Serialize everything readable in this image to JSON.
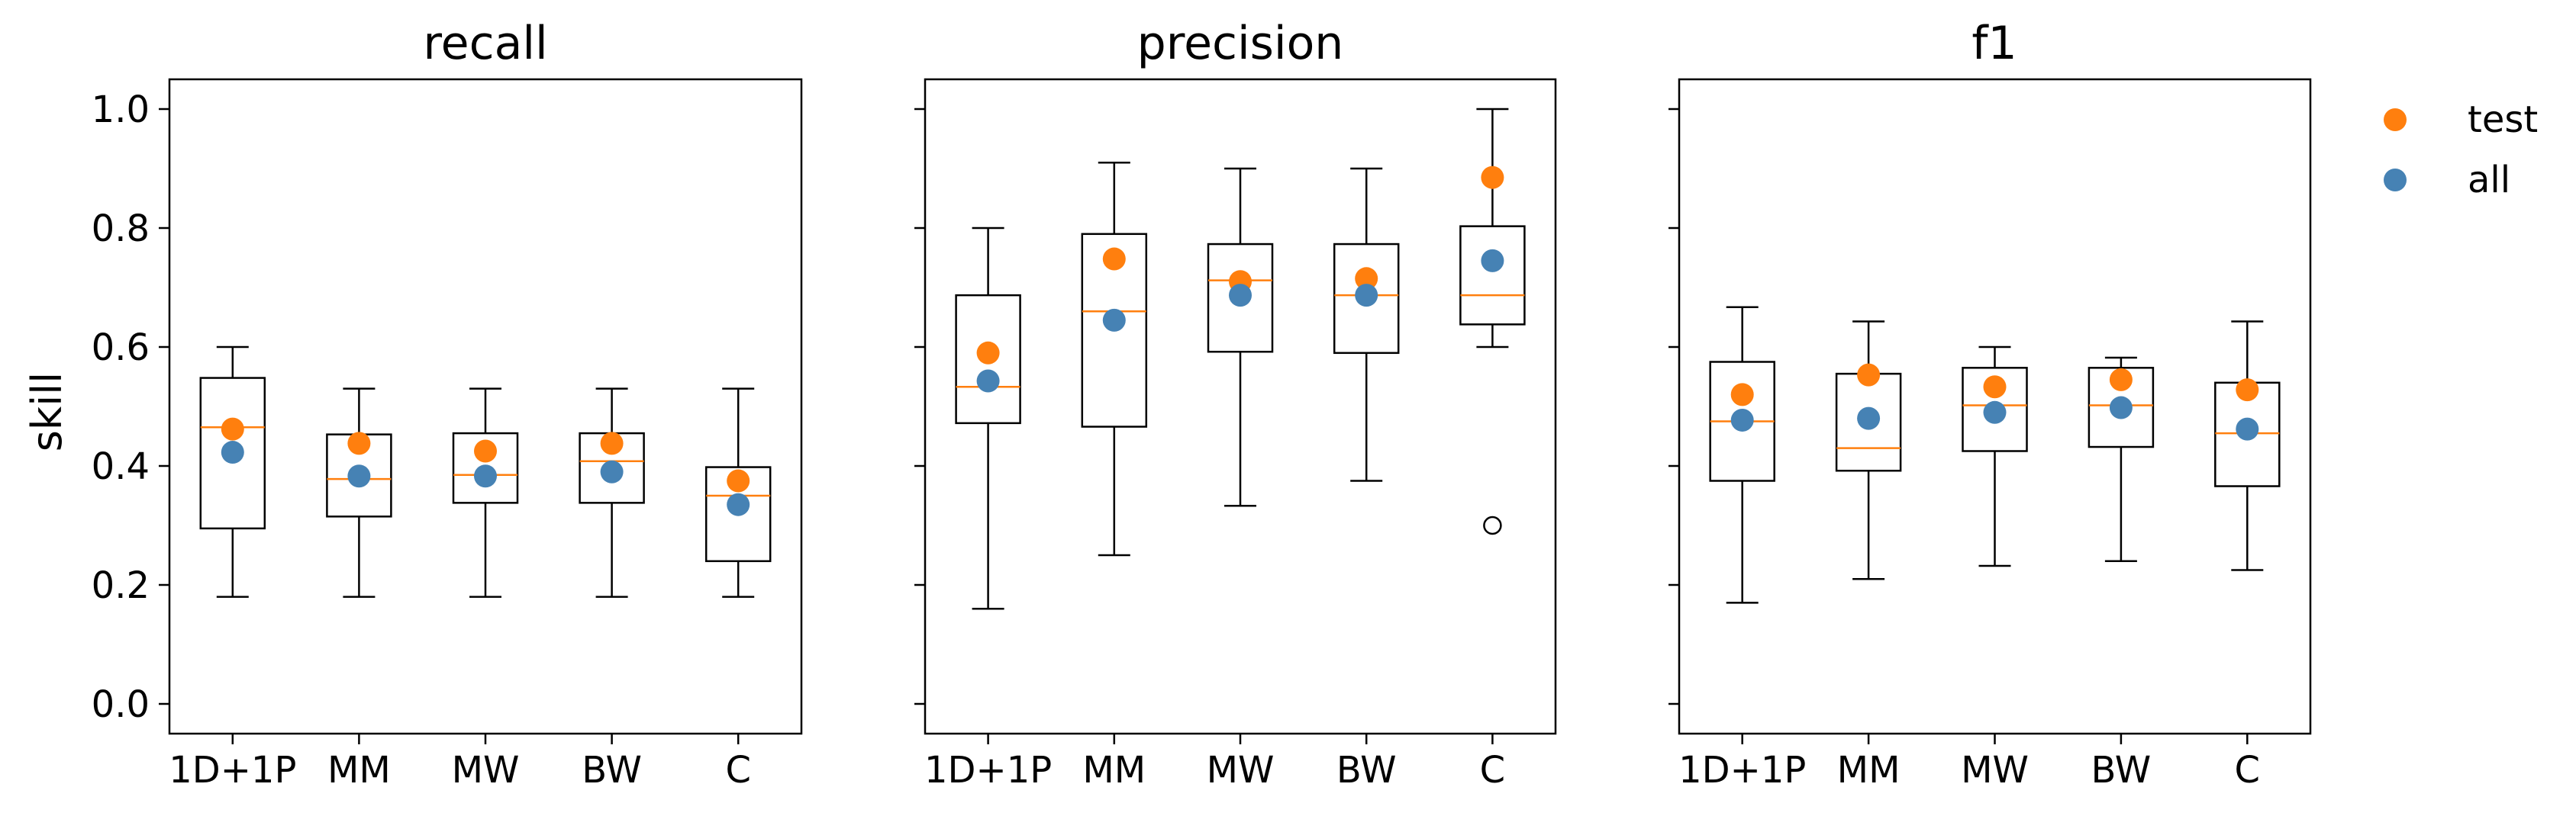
{
  "figure": {
    "ylabel": "skill",
    "colors": {
      "test": "#ff7f0e",
      "all": "#4682b4",
      "median": "#ff7f0e",
      "box": "#000000"
    },
    "legend": {
      "placement": "right",
      "entries": [
        {
          "label": "test",
          "series": "test"
        },
        {
          "label": "all",
          "series": "all"
        }
      ]
    }
  },
  "chart_data": [
    {
      "type": "box",
      "title": "recall",
      "ylim": [
        -0.05,
        1.05
      ],
      "yticks": [
        "0.0",
        "0.2",
        "0.4",
        "0.6",
        "0.8",
        "1.0"
      ],
      "categories": [
        "1D+1P",
        "MM",
        "MW",
        "BW",
        "C"
      ],
      "boxes": [
        {
          "whislo": 0.18,
          "q1": 0.295,
          "med": 0.465,
          "q3": 0.548,
          "whishi": 0.6,
          "fliers": []
        },
        {
          "whislo": 0.18,
          "q1": 0.315,
          "med": 0.378,
          "q3": 0.453,
          "whishi": 0.53,
          "fliers": []
        },
        {
          "whislo": 0.18,
          "q1": 0.338,
          "med": 0.385,
          "q3": 0.455,
          "whishi": 0.53,
          "fliers": []
        },
        {
          "whislo": 0.18,
          "q1": 0.338,
          "med": 0.408,
          "q3": 0.455,
          "whishi": 0.53,
          "fliers": []
        },
        {
          "whislo": 0.18,
          "q1": 0.24,
          "med": 0.35,
          "q3": 0.398,
          "whishi": 0.53,
          "fliers": []
        }
      ],
      "series": [
        {
          "name": "test",
          "values": [
            0.462,
            0.438,
            0.425,
            0.438,
            0.375
          ]
        },
        {
          "name": "all",
          "values": [
            0.423,
            0.383,
            0.383,
            0.39,
            0.335
          ]
        }
      ]
    },
    {
      "type": "box",
      "title": "precision",
      "ylim": [
        -0.05,
        1.05
      ],
      "yticks": [],
      "categories": [
        "1D+1P",
        "MM",
        "MW",
        "BW",
        "C"
      ],
      "boxes": [
        {
          "whislo": 0.16,
          "q1": 0.472,
          "med": 0.533,
          "q3": 0.687,
          "whishi": 0.8,
          "fliers": []
        },
        {
          "whislo": 0.25,
          "q1": 0.466,
          "med": 0.66,
          "q3": 0.79,
          "whishi": 0.91,
          "fliers": []
        },
        {
          "whislo": 0.333,
          "q1": 0.592,
          "med": 0.712,
          "q3": 0.773,
          "whishi": 0.9,
          "fliers": []
        },
        {
          "whislo": 0.375,
          "q1": 0.59,
          "med": 0.687,
          "q3": 0.773,
          "whishi": 0.9,
          "fliers": []
        },
        {
          "whislo": 0.6,
          "q1": 0.638,
          "med": 0.687,
          "q3": 0.803,
          "whishi": 1.0,
          "fliers": [
            0.3
          ]
        }
      ],
      "series": [
        {
          "name": "test",
          "values": [
            0.59,
            0.748,
            0.71,
            0.715,
            0.885
          ]
        },
        {
          "name": "all",
          "values": [
            0.543,
            0.645,
            0.687,
            0.687,
            0.745
          ]
        }
      ]
    },
    {
      "type": "box",
      "title": "f1",
      "ylim": [
        -0.05,
        1.05
      ],
      "yticks": [],
      "categories": [
        "1D+1P",
        "MM",
        "MW",
        "BW",
        "C"
      ],
      "boxes": [
        {
          "whislo": 0.17,
          "q1": 0.375,
          "med": 0.475,
          "q3": 0.575,
          "whishi": 0.667,
          "fliers": []
        },
        {
          "whislo": 0.21,
          "q1": 0.392,
          "med": 0.43,
          "q3": 0.555,
          "whishi": 0.643,
          "fliers": []
        },
        {
          "whislo": 0.232,
          "q1": 0.425,
          "med": 0.502,
          "q3": 0.565,
          "whishi": 0.6,
          "fliers": []
        },
        {
          "whislo": 0.24,
          "q1": 0.432,
          "med": 0.502,
          "q3": 0.565,
          "whishi": 0.582,
          "fliers": []
        },
        {
          "whislo": 0.225,
          "q1": 0.366,
          "med": 0.455,
          "q3": 0.54,
          "whishi": 0.643,
          "fliers": []
        }
      ],
      "series": [
        {
          "name": "test",
          "values": [
            0.52,
            0.553,
            0.533,
            0.545,
            0.528
          ]
        },
        {
          "name": "all",
          "values": [
            0.477,
            0.48,
            0.49,
            0.498,
            0.462
          ]
        }
      ]
    }
  ]
}
